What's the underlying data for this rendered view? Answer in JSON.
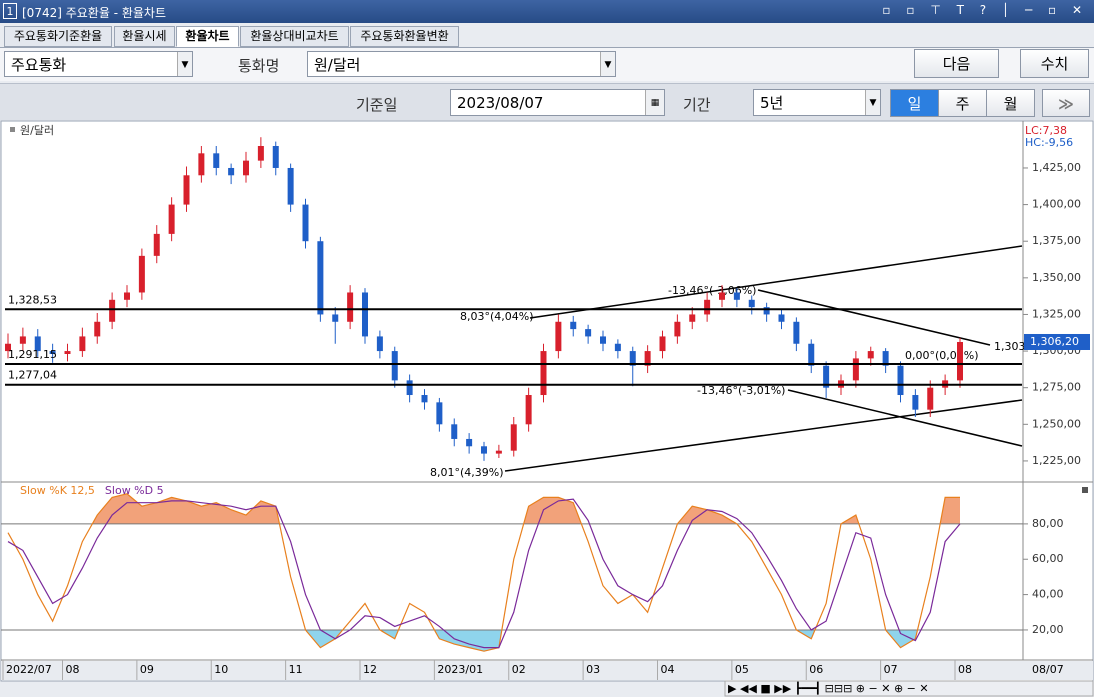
{
  "window": {
    "number": "1",
    "title": "[0742] 주요환율 - 환율차트"
  },
  "tabs": [
    "주요통화기준환율",
    "환율시세",
    "환율차트",
    "환율상대비교차트",
    "주요통화환율변환"
  ],
  "controls": {
    "currency_group": "주요통화",
    "currency_label": "통화명",
    "currency": "원/달러",
    "next": "다음",
    "values": "수치",
    "date_label": "기준일",
    "date": "2023/08/07",
    "period_label": "기간",
    "period": "5년",
    "day": "일",
    "week": "주",
    "month": "월"
  },
  "chart_data": [
    {
      "type": "candlestick",
      "title": "원/달러",
      "lc": "LC:7,38",
      "hc": "HC:-9,56",
      "categories": [
        "2022/07",
        null,
        null,
        null,
        "08",
        null,
        null,
        null,
        null,
        "09",
        null,
        null,
        null,
        null,
        "10",
        null,
        null,
        null,
        null,
        "11",
        null,
        null,
        null,
        null,
        "12",
        null,
        null,
        null,
        null,
        "2023/01",
        null,
        null,
        null,
        null,
        "02",
        null,
        null,
        null,
        null,
        "03",
        null,
        null,
        null,
        null,
        "04",
        null,
        null,
        null,
        null,
        "05",
        null,
        null,
        null,
        null,
        "06",
        null,
        null,
        null,
        null,
        "07",
        null,
        null,
        null,
        null,
        "08"
      ],
      "open": [
        1300,
        1305,
        1310,
        1300,
        1298,
        1300,
        1310,
        1320,
        1335,
        1340,
        1365,
        1380,
        1400,
        1420,
        1435,
        1425,
        1420,
        1430,
        1440,
        1425,
        1400,
        1375,
        1325,
        1320,
        1340,
        1310,
        1300,
        1280,
        1270,
        1265,
        1250,
        1240,
        1235,
        1230,
        1232,
        1250,
        1270,
        1300,
        1320,
        1315,
        1310,
        1305,
        1300,
        1290,
        1300,
        1310,
        1320,
        1325,
        1335,
        1340,
        1335,
        1330,
        1325,
        1320,
        1305,
        1290,
        1275,
        1280,
        1295,
        1300,
        1290,
        1270,
        1260,
        1275,
        1280
      ],
      "close": [
        1305,
        1310,
        1300,
        1298,
        1300,
        1310,
        1320,
        1335,
        1340,
        1365,
        1380,
        1400,
        1420,
        1435,
        1425,
        1420,
        1430,
        1440,
        1425,
        1400,
        1375,
        1325,
        1320,
        1340,
        1310,
        1300,
        1280,
        1270,
        1265,
        1250,
        1240,
        1235,
        1230,
        1232,
        1250,
        1270,
        1300,
        1320,
        1315,
        1310,
        1305,
        1300,
        1290,
        1300,
        1310,
        1320,
        1325,
        1335,
        1340,
        1335,
        1330,
        1325,
        1320,
        1305,
        1290,
        1275,
        1280,
        1295,
        1300,
        1290,
        1270,
        1260,
        1275,
        1280,
        1306.2
      ],
      "high": [
        1312,
        1316,
        1315,
        1305,
        1305,
        1316,
        1326,
        1340,
        1345,
        1370,
        1386,
        1405,
        1426,
        1440,
        1440,
        1428,
        1436,
        1446,
        1443,
        1428,
        1404,
        1378,
        1330,
        1345,
        1343,
        1314,
        1303,
        1284,
        1274,
        1268,
        1254,
        1244,
        1238,
        1236,
        1255,
        1275,
        1305,
        1325,
        1324,
        1318,
        1314,
        1308,
        1303,
        1304,
        1314,
        1325,
        1330,
        1340,
        1345,
        1343,
        1338,
        1333,
        1328,
        1323,
        1308,
        1293,
        1284,
        1300,
        1303,
        1302,
        1293,
        1274,
        1280,
        1284,
        1309
      ],
      "low": [
        1295,
        1300,
        1296,
        1292,
        1293,
        1296,
        1305,
        1315,
        1330,
        1335,
        1360,
        1375,
        1395,
        1415,
        1420,
        1414,
        1415,
        1425,
        1420,
        1395,
        1370,
        1320,
        1305,
        1315,
        1305,
        1295,
        1275,
        1265,
        1260,
        1245,
        1235,
        1230,
        1225,
        1227,
        1228,
        1245,
        1265,
        1295,
        1310,
        1305,
        1300,
        1295,
        1276,
        1285,
        1295,
        1305,
        1315,
        1320,
        1330,
        1330,
        1325,
        1320,
        1315,
        1300,
        1285,
        1268,
        1270,
        1275,
        1290,
        1285,
        1265,
        1255,
        1255,
        1270,
        1275
      ],
      "up_color": "#d8202c",
      "down_color": "#1f5fc8",
      "ylim": [
        1211.3,
        1455.7
      ],
      "yticks": [
        {
          "value": 1225,
          "label": "1,225,00"
        },
        {
          "value": 1250,
          "label": "1,250,00"
        },
        {
          "value": 1275,
          "label": "1,275,00"
        },
        {
          "value": 1300,
          "label": "1,300,00"
        },
        {
          "value": 1325,
          "label": "1,325,00"
        },
        {
          "value": 1350,
          "label": "1,350,00"
        },
        {
          "value": 1375,
          "label": "1,375,00"
        },
        {
          "value": 1400,
          "label": "1,400,00"
        },
        {
          "value": 1425,
          "label": "1,425,00"
        }
      ],
      "reference_lines": [
        {
          "value": 1328.53,
          "label": "1,328,53"
        },
        {
          "value": 1291.15,
          "label": "1,291,15"
        },
        {
          "value": 1277.04,
          "label": "1,277,04"
        }
      ],
      "last_value": {
        "value": 1306.2,
        "label": "1,306,20"
      },
      "annotations": [
        "8,03°(4,04%)",
        "-13,46°(-3,06%)",
        "0,00°(0,00%)",
        "-13,46°(-3,01%)",
        "8,01°(4,39%)",
        "1,303"
      ],
      "cursor_date": "08/07"
    },
    {
      "type": "line",
      "series": [
        {
          "name": "Slow %K 12,5",
          "color": "#e8801e",
          "values": [
            75,
            60,
            40,
            25,
            45,
            70,
            85,
            95,
            97,
            90,
            92,
            95,
            93,
            90,
            92,
            88,
            85,
            93,
            90,
            50,
            20,
            10,
            15,
            25,
            35,
            20,
            15,
            35,
            30,
            15,
            12,
            10,
            8,
            10,
            60,
            90,
            95,
            95,
            92,
            70,
            45,
            35,
            40,
            30,
            55,
            80,
            90,
            88,
            85,
            80,
            70,
            55,
            40,
            20,
            15,
            35,
            80,
            85,
            60,
            20,
            10,
            15,
            50,
            95,
            95
          ]
        },
        {
          "name": "Slow %D 5",
          "color": "#7a2a9a",
          "values": [
            70,
            65,
            50,
            35,
            40,
            55,
            72,
            85,
            92,
            92,
            92,
            93,
            93,
            92,
            91,
            90,
            88,
            90,
            90,
            70,
            40,
            20,
            15,
            20,
            28,
            27,
            22,
            25,
            28,
            22,
            15,
            12,
            10,
            10,
            30,
            65,
            88,
            93,
            94,
            82,
            60,
            45,
            40,
            36,
            45,
            65,
            82,
            88,
            87,
            83,
            75,
            62,
            48,
            32,
            20,
            25,
            50,
            75,
            72,
            40,
            18,
            14,
            30,
            70,
            80
          ]
        }
      ],
      "overbought_color": "#f2a27a",
      "oversold_color": "#8fd4ec",
      "ylim": [
        3,
        102
      ],
      "yticks": [
        {
          "value": 20,
          "label": "20,00"
        },
        {
          "value": 40,
          "label": "40,00"
        },
        {
          "value": 60,
          "label": "60,00"
        },
        {
          "value": 80,
          "label": "80,00"
        }
      ],
      "reference_lines": [
        80,
        20
      ]
    }
  ]
}
